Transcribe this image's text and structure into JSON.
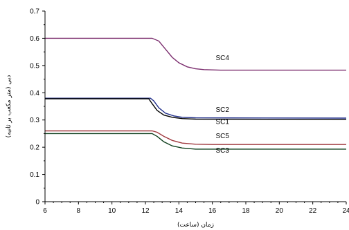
{
  "chart_data": {
    "type": "line",
    "xlabel": "زمان (ساعت)",
    "ylabel": "دبی (متر مکعب بر ثانیه)",
    "xlim": [
      6,
      24
    ],
    "ylim": [
      0,
      0.7
    ],
    "x_ticks": [
      "6",
      "8",
      "10",
      "12",
      "14",
      "16",
      "18",
      "20",
      "22",
      "24"
    ],
    "y_ticks": [
      "0",
      "0.1",
      "0.2",
      "0.3",
      "0.4",
      "0.5",
      "0.6",
      "0.7"
    ],
    "grid": false,
    "legend": "inline labels",
    "series": [
      {
        "name": "SC4",
        "color": "#7b2d6e",
        "label_at": [
          16.6,
          0.52
        ],
        "points": [
          [
            6,
            0.6
          ],
          [
            12.4,
            0.6
          ],
          [
            12.8,
            0.59
          ],
          [
            13.2,
            0.56
          ],
          [
            13.6,
            0.53
          ],
          [
            14.0,
            0.51
          ],
          [
            14.5,
            0.495
          ],
          [
            15.0,
            0.488
          ],
          [
            15.5,
            0.485
          ],
          [
            16.5,
            0.483
          ],
          [
            24,
            0.483
          ]
        ]
      },
      {
        "name": "SC2",
        "color": "#1f2d8a",
        "label_at": [
          16.6,
          0.33
        ],
        "points": [
          [
            6,
            0.38
          ],
          [
            12.3,
            0.38
          ],
          [
            12.5,
            0.37
          ],
          [
            12.8,
            0.345
          ],
          [
            13.2,
            0.325
          ],
          [
            13.7,
            0.315
          ],
          [
            14.2,
            0.31
          ],
          [
            15.0,
            0.308
          ],
          [
            24,
            0.307
          ]
        ]
      },
      {
        "name": "SC1",
        "color": "#000000",
        "label_at": [
          16.6,
          0.285
        ],
        "points": [
          [
            6,
            0.378
          ],
          [
            12.2,
            0.378
          ],
          [
            12.4,
            0.36
          ],
          [
            12.7,
            0.335
          ],
          [
            13.1,
            0.318
          ],
          [
            13.6,
            0.31
          ],
          [
            14.2,
            0.305
          ],
          [
            15.0,
            0.303
          ],
          [
            24,
            0.302
          ]
        ]
      },
      {
        "name": "SC5",
        "color": "#a0393f",
        "label_at": [
          16.6,
          0.233
        ],
        "points": [
          [
            6,
            0.26
          ],
          [
            12.4,
            0.26
          ],
          [
            12.7,
            0.255
          ],
          [
            13.1,
            0.24
          ],
          [
            13.6,
            0.225
          ],
          [
            14.2,
            0.215
          ],
          [
            15.0,
            0.211
          ],
          [
            16.0,
            0.21
          ],
          [
            24,
            0.21
          ]
        ]
      },
      {
        "name": "SC3",
        "color": "#0b3d1a",
        "label_at": [
          16.6,
          0.18
        ],
        "points": [
          [
            6,
            0.25
          ],
          [
            12.4,
            0.25
          ],
          [
            12.7,
            0.24
          ],
          [
            13.1,
            0.22
          ],
          [
            13.6,
            0.205
          ],
          [
            14.2,
            0.197
          ],
          [
            15.0,
            0.193
          ],
          [
            24,
            0.193
          ]
        ]
      }
    ]
  }
}
